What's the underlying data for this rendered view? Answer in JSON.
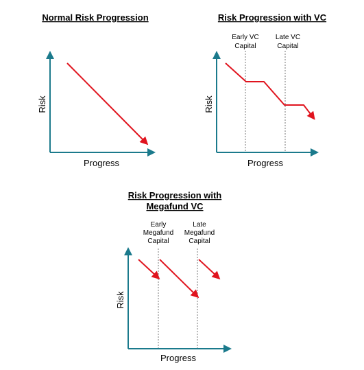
{
  "panels": [
    {
      "title_lines": [
        "Normal Risk Progression"
      ],
      "xlabel": "Progress",
      "ylabel": "Risk",
      "annotations": []
    },
    {
      "title_lines": [
        "Risk Progression with VC"
      ],
      "xlabel": "Progress",
      "ylabel": "Risk",
      "annotations": [
        {
          "lines": [
            "Early VC",
            "Capital"
          ]
        },
        {
          "lines": [
            "Late VC",
            "Capital"
          ]
        }
      ]
    },
    {
      "title_lines": [
        "Risk Progression with",
        "Megafund VC"
      ],
      "xlabel": "Progress",
      "ylabel": "Risk",
      "annotations": [
        {
          "lines": [
            "Early",
            "Megafund",
            "Capital"
          ]
        },
        {
          "lines": [
            "Late",
            "Megafund",
            "Capital"
          ]
        }
      ]
    }
  ],
  "colors": {
    "axis": "#1b7a8c",
    "risk_line": "#e0141e",
    "divider": "#555555"
  }
}
